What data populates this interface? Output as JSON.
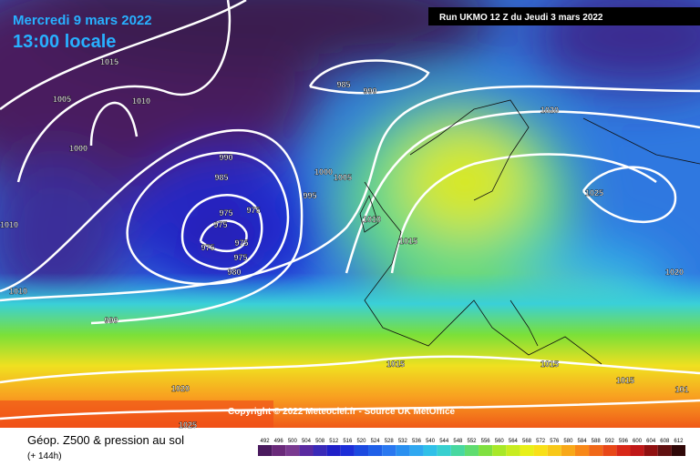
{
  "header": {
    "date": "Mercredi 9 mars 2022",
    "time": "13:00 locale",
    "run": "Run UKMO 12 Z du Jeudi 3 mars 2022"
  },
  "isobar_labels": [
    "1015",
    "1005",
    "1010",
    "1000",
    "985",
    "990",
    "1020",
    "990",
    "985",
    "1000",
    "1005",
    "995",
    "975",
    "975",
    "975",
    "1010",
    "1025",
    "1010",
    "975",
    "975",
    "1015",
    "975",
    "980",
    "1020",
    "1010",
    "990",
    "1015",
    "1015",
    "1015",
    "1020",
    "101",
    "1025"
  ],
  "copyright": "Copyright © 2022 Meteociel.fr - Source UK MetOffice",
  "legend": {
    "title": "Géop. Z500 & pression au sol",
    "subtitle": "(+ 144h)",
    "scale": [
      492,
      496,
      500,
      504,
      508,
      512,
      516,
      520,
      524,
      528,
      532,
      536,
      540,
      544,
      548,
      552,
      556,
      560,
      564,
      568,
      572,
      576,
      580,
      584,
      588,
      592,
      596,
      600,
      604,
      608,
      612
    ]
  }
}
